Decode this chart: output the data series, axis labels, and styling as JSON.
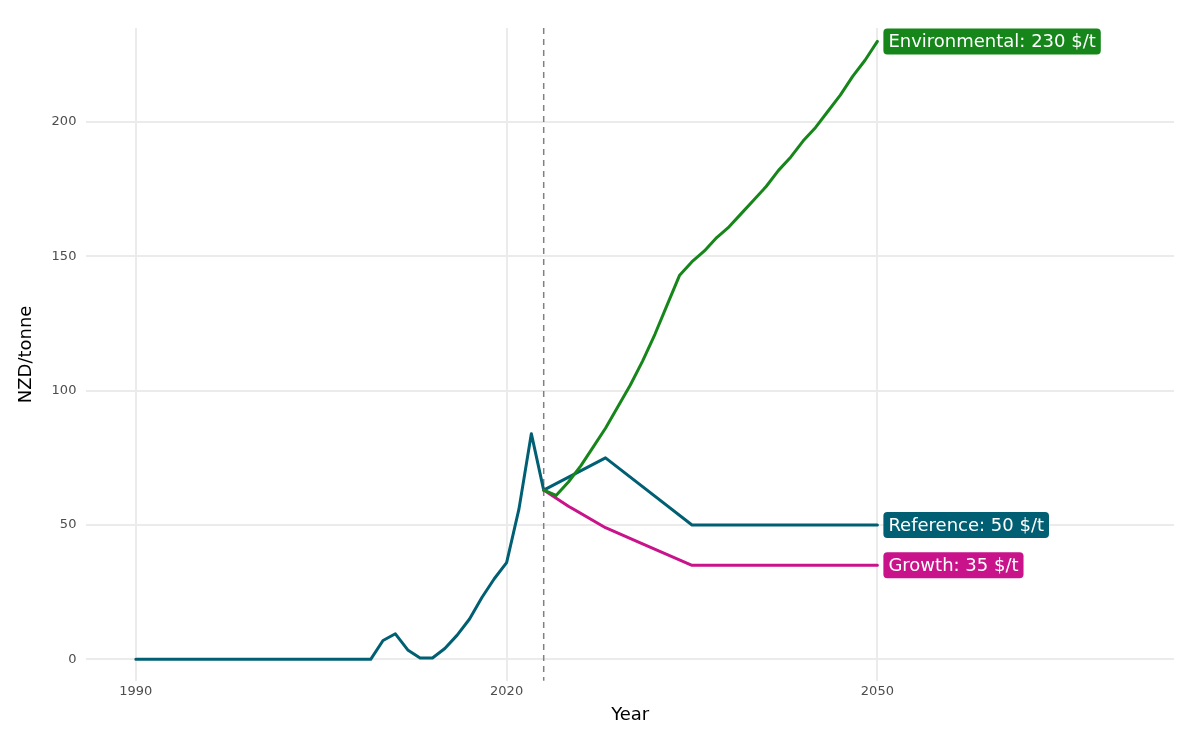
{
  "chart_data": {
    "type": "line",
    "xlabel": "Year",
    "ylabel": "NZD/tonne",
    "xlim": [
      1986,
      2074
    ],
    "ylim": [
      -8,
      235
    ],
    "xticks": [
      1990,
      2020,
      2050
    ],
    "yticks": [
      0,
      50,
      100,
      150,
      200
    ],
    "grid": true,
    "legend": false,
    "marker": "none",
    "line_style": "solid",
    "ref_lines": [
      {
        "axis": "x",
        "value": 2023,
        "color": "#808080",
        "line_style": "dashed"
      }
    ],
    "series": [
      {
        "name": "Environmental: 230 $/t",
        "color": "#16861a",
        "x": [
          2023,
          2024,
          2025,
          2026,
          2027,
          2028,
          2029,
          2030,
          2031,
          2032,
          2033,
          2034,
          2035,
          2036,
          2037,
          2038,
          2039,
          2040,
          2041,
          2042,
          2043,
          2044,
          2045,
          2046,
          2047,
          2048,
          2049,
          2050
        ],
        "values": [
          63,
          61,
          66,
          72,
          79,
          86,
          94,
          102,
          111,
          121,
          132,
          143,
          148,
          152,
          157,
          161,
          166,
          171,
          176,
          182,
          187,
          193,
          198,
          204,
          210,
          217,
          223,
          230
        ]
      },
      {
        "name": "Growth: 35 $/t",
        "color": "#c9138a",
        "x": [
          2023,
          2025,
          2028,
          2031,
          2033,
          2035,
          2050
        ],
        "values": [
          63,
          57,
          49,
          43,
          39,
          35,
          35
        ]
      },
      {
        "name": "Reference: 50 $/t",
        "color": "#005f73",
        "x": [
          1990,
          2009,
          2010,
          2011,
          2012,
          2013,
          2014,
          2015,
          2016,
          2017,
          2018,
          2019,
          2020,
          2021,
          2022,
          2023,
          2028,
          2035,
          2050
        ],
        "values": [
          0,
          0,
          7,
          9.5,
          3.5,
          0.5,
          0.5,
          4,
          9,
          15,
          23,
          30,
          36,
          56,
          84,
          63,
          75,
          50,
          50
        ]
      }
    ]
  }
}
